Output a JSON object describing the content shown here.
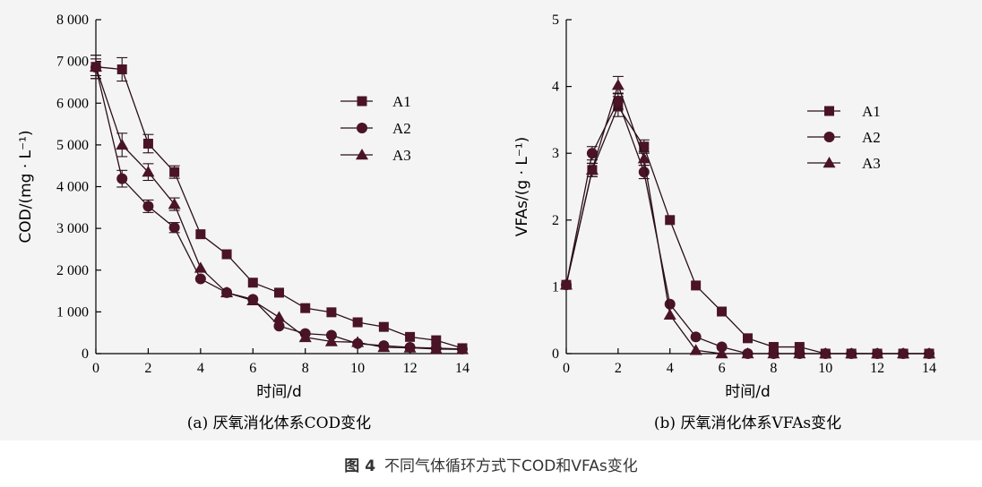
{
  "caption": {
    "number": "图 4",
    "text": "不同气体循环方式下COD和VFAs变化"
  },
  "colors": {
    "line": "#2a0f16",
    "marker": "#4a1426",
    "axis": "#000000"
  },
  "chart_data": [
    {
      "type": "line",
      "id": "a",
      "subcaption": "(a) 厌氧消化体系COD变化",
      "xlabel": "时间/d",
      "ylabel": "COD/(mg · L⁻¹)",
      "xlim": [
        0,
        14
      ],
      "ylim": [
        0,
        8000
      ],
      "xticks": [
        0,
        2,
        4,
        6,
        8,
        10,
        12,
        14
      ],
      "xtick_labels": [
        "0",
        "2",
        "4",
        "6",
        "8",
        "10",
        "12",
        "14"
      ],
      "yticks": [
        0,
        1000,
        2000,
        3000,
        4000,
        5000,
        6000,
        7000,
        8000
      ],
      "ytick_labels": [
        "0",
        "1 000",
        "2 000",
        "3 000",
        "4 000",
        "5 000",
        "6 000",
        "7 000",
        "8 000"
      ],
      "legend_position": "upper-right",
      "x": [
        0,
        1,
        2,
        3,
        4,
        5,
        6,
        7,
        8,
        9,
        10,
        11,
        12,
        13,
        14
      ],
      "series": [
        {
          "name": "A1",
          "marker": "square",
          "values": [
            6870,
            6810,
            5030,
            4350,
            2860,
            2380,
            1700,
            1460,
            1090,
            990,
            750,
            640,
            400,
            320,
            130
          ],
          "errors": [
            280,
            280,
            220,
            150,
            0,
            0,
            0,
            0,
            0,
            0,
            0,
            0,
            0,
            0,
            0
          ]
        },
        {
          "name": "A2",
          "marker": "circle",
          "values": [
            6860,
            4190,
            3530,
            3020,
            1790,
            1460,
            1300,
            660,
            480,
            440,
            240,
            190,
            150,
            130,
            110
          ],
          "errors": [
            200,
            200,
            150,
            120,
            0,
            0,
            0,
            0,
            0,
            0,
            0,
            0,
            0,
            0,
            0
          ]
        },
        {
          "name": "A3",
          "marker": "triangle",
          "values": [
            6870,
            5000,
            4350,
            3580,
            2050,
            1460,
            1270,
            870,
            390,
            290,
            270,
            150,
            140,
            110,
            100
          ],
          "errors": [
            280,
            280,
            200,
            150,
            0,
            0,
            0,
            0,
            0,
            0,
            0,
            0,
            0,
            0,
            0
          ]
        }
      ]
    },
    {
      "type": "line",
      "id": "b",
      "subcaption": "(b) 厌氧消化体系VFAs变化",
      "xlabel": "时间/d",
      "ylabel": "VFAs/(g · L⁻¹)",
      "xlim": [
        0,
        14
      ],
      "ylim": [
        0,
        5
      ],
      "xticks": [
        0,
        2,
        4,
        6,
        8,
        10,
        12,
        14
      ],
      "xtick_labels": [
        "0",
        "2",
        "4",
        "6",
        "8",
        "10",
        "12",
        "14"
      ],
      "yticks": [
        0,
        1,
        2,
        3,
        4,
        5
      ],
      "ytick_labels": [
        "0",
        "1",
        "2",
        "3",
        "4",
        "5"
      ],
      "legend_position": "upper-right",
      "x": [
        0,
        1,
        2,
        3,
        4,
        5,
        6,
        7,
        8,
        9,
        10,
        11,
        12,
        13,
        14
      ],
      "series": [
        {
          "name": "A1",
          "marker": "square",
          "values": [
            1.03,
            2.75,
            3.7,
            3.1,
            2.0,
            1.02,
            0.63,
            0.23,
            0.1,
            0.1,
            0.0,
            0.0,
            0.0,
            0.0,
            0.0
          ],
          "errors": [
            0,
            0.1,
            0.15,
            0.1,
            0,
            0,
            0,
            0,
            0,
            0,
            0,
            0,
            0,
            0,
            0
          ]
        },
        {
          "name": "A2",
          "marker": "circle",
          "values": [
            1.03,
            3.0,
            3.78,
            2.72,
            0.74,
            0.25,
            0.1,
            0.0,
            0.0,
            0.0,
            0.0,
            0.0,
            0.0,
            0.0,
            0.0
          ],
          "errors": [
            0,
            0.1,
            0.12,
            0.1,
            0,
            0,
            0,
            0,
            0,
            0,
            0,
            0,
            0,
            0,
            0
          ]
        },
        {
          "name": "A3",
          "marker": "triangle",
          "values": [
            1.03,
            2.75,
            4.02,
            2.92,
            0.58,
            0.05,
            0.0,
            0.0,
            0.0,
            0.0,
            0.0,
            0.0,
            0.0,
            0.0,
            0.0
          ],
          "errors": [
            0,
            0.1,
            0.13,
            0.1,
            0,
            0,
            0,
            0,
            0,
            0,
            0,
            0,
            0,
            0,
            0
          ]
        }
      ]
    }
  ]
}
